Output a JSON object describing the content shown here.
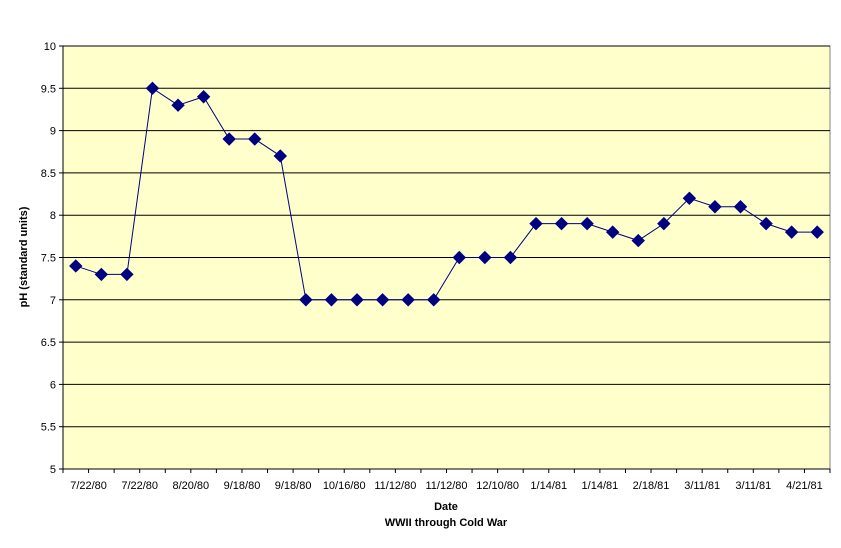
{
  "chart_data": {
    "type": "line",
    "title": "",
    "xlabel": "Date",
    "xlabel_sub": "WWII through Cold War",
    "ylabel": "pH (standard units)",
    "ylim": [
      5,
      10
    ],
    "yticks": [
      "5",
      "5.5",
      "6",
      "6.5",
      "7",
      "7.5",
      "8",
      "8.5",
      "9",
      "9.5",
      "10"
    ],
    "grid": "horizontal",
    "legend": "none",
    "colors": {
      "plot_bg": "#FFFFCC",
      "series": "#000080",
      "grid": "#000000"
    },
    "x_tick_labels": [
      "7/22/80",
      "7/22/80",
      "8/20/80",
      "9/18/80",
      "9/18/80",
      "10/16/80",
      "11/12/80",
      "11/12/80",
      "12/10/80",
      "1/14/81",
      "1/14/81",
      "2/18/81",
      "3/11/81",
      "3/11/81",
      "4/21/81"
    ],
    "series": [
      {
        "values": [
          7.4,
          7.3,
          7.3,
          9.5,
          9.3,
          9.4,
          8.9,
          8.9,
          8.7,
          7.0,
          7.0,
          7.0,
          7.0,
          7.0,
          7.0,
          7.5,
          7.5,
          7.5,
          7.9,
          7.9,
          7.9,
          7.8,
          7.7,
          7.9,
          8.2,
          8.1,
          8.1,
          7.9,
          7.8,
          7.8
        ]
      }
    ]
  }
}
